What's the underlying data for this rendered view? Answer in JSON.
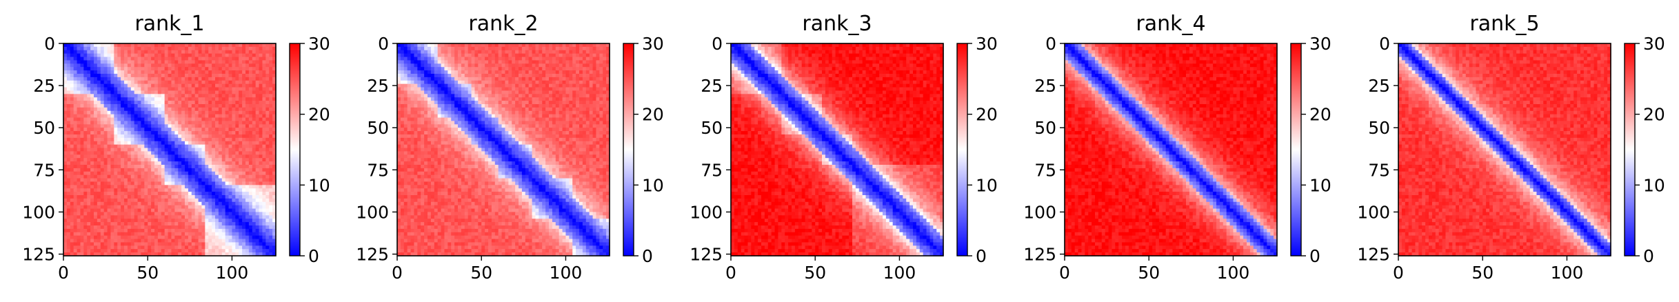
{
  "chart_data": [
    {
      "type": "heatmap",
      "title": "rank_1",
      "xlim": [
        0,
        126
      ],
      "ylim": [
        126,
        0
      ],
      "xticks": [
        0,
        50,
        100
      ],
      "yticks": [
        0,
        25,
        50,
        75,
        100,
        125
      ],
      "colorbar": {
        "min": 0,
        "max": 30,
        "ticks": [
          0,
          10,
          20,
          30
        ]
      },
      "colormap": [
        "#0000ff",
        "#ffffff",
        "#ff0000"
      ],
      "band_width": 14,
      "domains": [
        30,
        60,
        84,
        126
      ],
      "domain_strength": 0.4,
      "background_level": 25
    },
    {
      "type": "heatmap",
      "title": "rank_2",
      "xlim": [
        0,
        126
      ],
      "ylim": [
        126,
        0
      ],
      "xticks": [
        0,
        50,
        100
      ],
      "yticks": [
        0,
        25,
        50,
        75,
        100,
        125
      ],
      "colorbar": {
        "min": 0,
        "max": 30,
        "ticks": [
          0,
          10,
          20,
          30
        ]
      },
      "colormap": [
        "#0000ff",
        "#ffffff",
        "#ff0000"
      ],
      "band_width": 13,
      "domains": [
        25,
        45,
        60,
        80,
        105,
        126
      ],
      "domain_strength": 0.4,
      "background_level": 25
    },
    {
      "type": "heatmap",
      "title": "rank_3",
      "xlim": [
        0,
        126
      ],
      "ylim": [
        126,
        0
      ],
      "xticks": [
        0,
        50,
        100
      ],
      "yticks": [
        0,
        25,
        50,
        75,
        100,
        125
      ],
      "colorbar": {
        "min": 0,
        "max": 30,
        "ticks": [
          0,
          10,
          20,
          30
        ]
      },
      "colormap": [
        "#0000ff",
        "#ffffff",
        "#ff0000"
      ],
      "band_width": 12,
      "domains": [
        30,
        55,
        72,
        126
      ],
      "domain_strength": 0.2,
      "background_level": 29
    },
    {
      "type": "heatmap",
      "title": "rank_4",
      "xlim": [
        0,
        126
      ],
      "ylim": [
        126,
        0
      ],
      "xticks": [
        0,
        50,
        100
      ],
      "yticks": [
        0,
        25,
        50,
        75,
        100,
        125
      ],
      "colorbar": {
        "min": 0,
        "max": 30,
        "ticks": [
          0,
          10,
          20,
          30
        ]
      },
      "colormap": [
        "#0000ff",
        "#ffffff",
        "#ff0000"
      ],
      "band_width": 9,
      "domains": [
        126
      ],
      "domain_strength": 0,
      "background_level": 29
    },
    {
      "type": "heatmap",
      "title": "rank_5",
      "xlim": [
        0,
        126
      ],
      "ylim": [
        126,
        0
      ],
      "xticks": [
        0,
        50,
        100
      ],
      "yticks": [
        0,
        25,
        50,
        75,
        100,
        125
      ],
      "colorbar": {
        "min": 0,
        "max": 30,
        "ticks": [
          0,
          10,
          20,
          30
        ]
      },
      "colormap": [
        "#0000ff",
        "#ffffff",
        "#ff0000"
      ],
      "band_width": 8,
      "domains": [
        126
      ],
      "domain_strength": 0,
      "background_level": 27
    }
  ]
}
